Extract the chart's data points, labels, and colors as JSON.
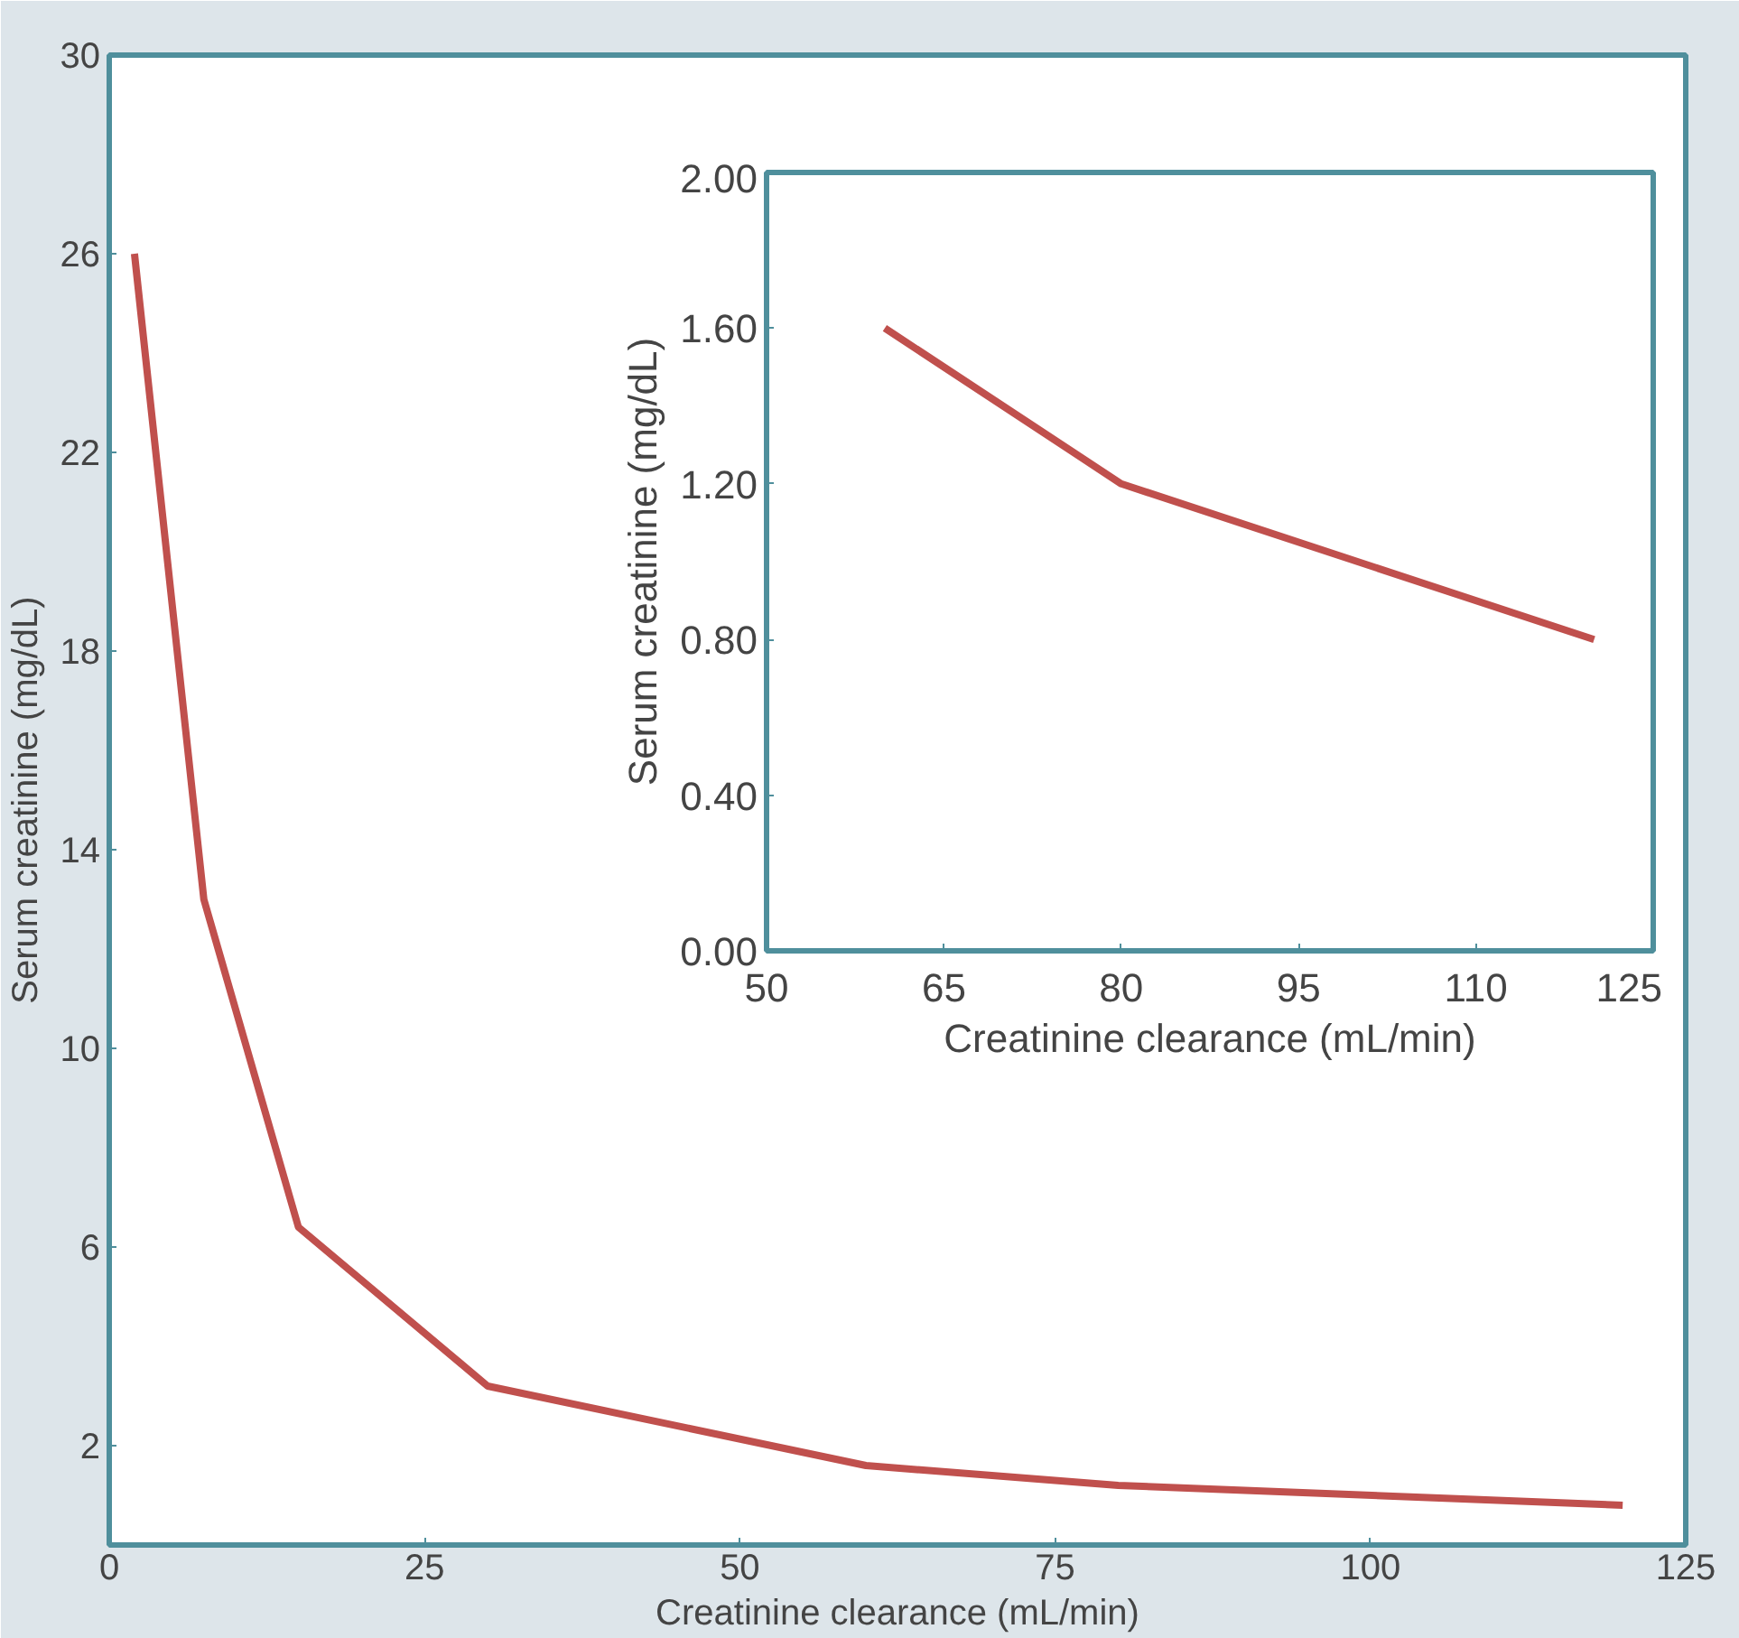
{
  "chart_data": [
    {
      "type": "line",
      "xlabel": "Creatinine clearance (mL/min)",
      "ylabel": "Serum creatinine (mg/dL)",
      "x": [
        2,
        7.5,
        15,
        30,
        60,
        80,
        120
      ],
      "series": [
        {
          "color": "#c0504d",
          "values": [
            26,
            13,
            6.4,
            3.2,
            1.6,
            1.2,
            0.8
          ]
        }
      ],
      "xlim": [
        0,
        125
      ],
      "xticks": [
        0,
        25,
        50,
        75,
        100,
        125
      ],
      "ylim": [
        0,
        30
      ],
      "yticks": [
        2,
        6,
        10,
        14,
        18,
        22,
        26,
        30
      ],
      "grid": false
    },
    {
      "type": "line",
      "xlabel": "Creatinine clearance (mL/min)",
      "ylabel": "Serum creatinine (mg/dL)",
      "x": [
        60,
        80,
        120
      ],
      "series": [
        {
          "color": "#c0504d",
          "values": [
            1.6,
            1.2,
            0.8
          ]
        }
      ],
      "xlim": [
        50,
        125
      ],
      "xticks": [
        50,
        65,
        80,
        95,
        110,
        125
      ],
      "ylim": [
        0,
        2
      ],
      "yticks": [
        {
          "value": 0,
          "label": "0.00"
        },
        {
          "value": 0.4,
          "label": "0.40"
        },
        {
          "value": 0.8,
          "label": "0.80"
        },
        {
          "value": 1.2,
          "label": "1.20"
        },
        {
          "value": 1.6,
          "label": "1.60"
        },
        {
          "value": 2,
          "label": "2.00"
        }
      ],
      "grid": false
    }
  ]
}
